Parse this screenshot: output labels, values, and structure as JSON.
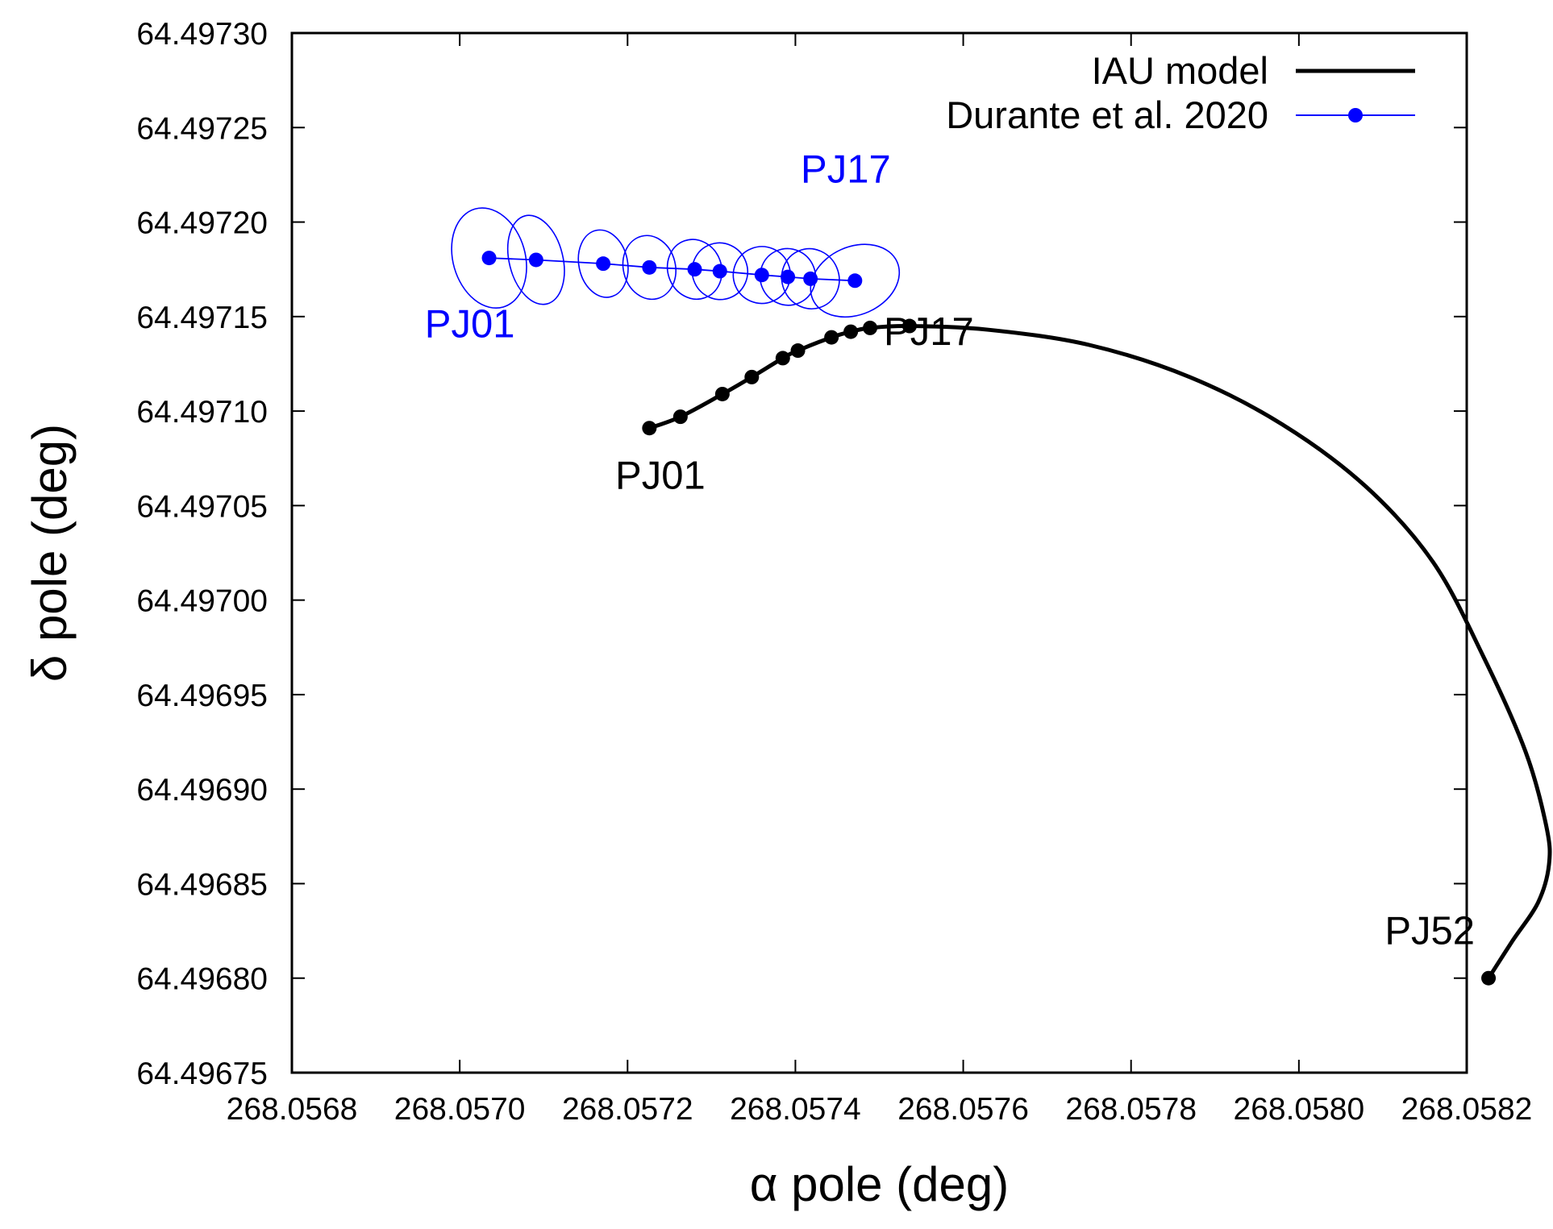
{
  "chart_data": {
    "type": "scatter",
    "title": "",
    "xlabel": "α pole (deg)",
    "ylabel": "δ pole (deg)",
    "xlim": [
      268.0568,
      268.0582
    ],
    "ylim": [
      64.49675,
      64.4973
    ],
    "x_ticks": [
      "268.0568",
      "268.0570",
      "268.0572",
      "268.0574",
      "268.0576",
      "268.0578",
      "268.0580",
      "268.0582"
    ],
    "y_ticks": [
      "64.49675",
      "64.49680",
      "64.49685",
      "64.49690",
      "64.49695",
      "64.49700",
      "64.49705",
      "64.49710",
      "64.49715",
      "64.49720",
      "64.49725",
      "64.49730"
    ],
    "grid": false,
    "legend_position": "top-right",
    "colors": {
      "iau": "#000000",
      "durante": "#0000ff"
    },
    "series": [
      {
        "name": "IAU model",
        "style": "line",
        "curve": [
          {
            "x": 268.057226,
            "y": 64.497091
          },
          {
            "x": 268.057263,
            "y": 64.497097
          },
          {
            "x": 268.057313,
            "y": 64.497109
          },
          {
            "x": 268.057348,
            "y": 64.497118
          },
          {
            "x": 268.057385,
            "y": 64.497128
          },
          {
            "x": 268.057403,
            "y": 64.497132
          },
          {
            "x": 268.057443,
            "y": 64.497139
          },
          {
            "x": 268.057466,
            "y": 64.497142
          },
          {
            "x": 268.057489,
            "y": 64.497144
          },
          {
            "x": 268.057536,
            "y": 64.497145
          },
          {
            "x": 268.05763,
            "y": 64.497143
          },
          {
            "x": 268.05775,
            "y": 64.497135
          },
          {
            "x": 268.05787,
            "y": 64.497118
          },
          {
            "x": 268.05798,
            "y": 64.497093
          },
          {
            "x": 268.05808,
            "y": 64.49706
          },
          {
            "x": 268.05816,
            "y": 64.49702
          },
          {
            "x": 268.05822,
            "y": 64.49697
          },
          {
            "x": 268.05827,
            "y": 64.49692
          },
          {
            "x": 268.058295,
            "y": 64.49688
          },
          {
            "x": 268.058298,
            "y": 64.49686
          },
          {
            "x": 268.058285,
            "y": 64.49684
          },
          {
            "x": 268.058255,
            "y": 64.49682
          },
          {
            "x": 268.058226,
            "y": 64.4968
          }
        ],
        "points": [
          {
            "x": 268.057226,
            "y": 64.497091
          },
          {
            "x": 268.057263,
            "y": 64.497097
          },
          {
            "x": 268.057313,
            "y": 64.497109
          },
          {
            "x": 268.057348,
            "y": 64.497118
          },
          {
            "x": 268.057385,
            "y": 64.497128
          },
          {
            "x": 268.057403,
            "y": 64.497132
          },
          {
            "x": 268.057443,
            "y": 64.497139
          },
          {
            "x": 268.057466,
            "y": 64.497142
          },
          {
            "x": 268.057489,
            "y": 64.497144
          },
          {
            "x": 268.057536,
            "y": 64.497145
          },
          {
            "x": 268.058226,
            "y": 64.4968
          }
        ]
      },
      {
        "name": "Durante et al. 2020",
        "style": "linespoints",
        "points": [
          {
            "x": 268.057035,
            "y": 64.497181,
            "sx": 4.3e-05,
            "sy": 2.7e-05,
            "rot": -16
          },
          {
            "x": 268.057091,
            "y": 64.49718,
            "sx": 3.2e-05,
            "sy": 2.4e-05,
            "rot": -14
          },
          {
            "x": 268.057171,
            "y": 64.497178,
            "sx": 2.9e-05,
            "sy": 1.8e-05,
            "rot": -12
          },
          {
            "x": 268.057226,
            "y": 64.497176,
            "sx": 3.1e-05,
            "sy": 1.7e-05,
            "rot": -14
          },
          {
            "x": 268.05728,
            "y": 64.497175,
            "sx": 3.2e-05,
            "sy": 1.6e-05,
            "rot": -20
          },
          {
            "x": 268.05731,
            "y": 64.497174,
            "sx": 3.3e-05,
            "sy": 1.5e-05,
            "rot": -20
          },
          {
            "x": 268.05736,
            "y": 64.497172,
            "sx": 3.4e-05,
            "sy": 1.5e-05,
            "rot": -22
          },
          {
            "x": 268.057391,
            "y": 64.497171,
            "sx": 3.3e-05,
            "sy": 1.5e-05,
            "rot": -22
          },
          {
            "x": 268.057418,
            "y": 64.49717,
            "sx": 3.4e-05,
            "sy": 1.6e-05,
            "rot": -22
          },
          {
            "x": 268.057471,
            "y": 64.497169,
            "sx": 5.5e-05,
            "sy": 1.8e-05,
            "rot": -24
          }
        ]
      }
    ],
    "annotations": [
      {
        "text": "PJ17",
        "series": "Durante et al. 2020",
        "x": 268.05746,
        "y": 64.497221
      },
      {
        "text": "PJ01",
        "series": "Durante et al. 2020",
        "x": 268.057012,
        "y": 64.497139
      },
      {
        "text": "PJ17",
        "series": "IAU model",
        "x": 268.057559,
        "y": 64.497135
      },
      {
        "text": "PJ01",
        "series": "IAU model",
        "x": 268.057239,
        "y": 64.497059
      },
      {
        "text": "PJ52",
        "series": "IAU model",
        "x": 268.058156,
        "y": 64.496818
      }
    ]
  }
}
